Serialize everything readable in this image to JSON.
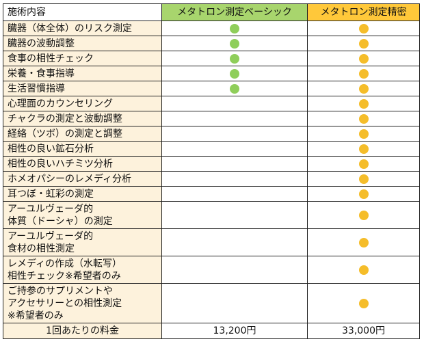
{
  "header": {
    "col1": "施術内容",
    "col2": "メタトロン測定ベーシック",
    "col3": "メタトロン測定精密"
  },
  "colors": {
    "basic_dot": "#8fce5a",
    "precise_dot": "#f5bd2a",
    "basic_header": "#a8d56d",
    "precise_header": "#ffc83a",
    "item_bg": "#fdf2dc"
  },
  "rows": [
    {
      "label": [
        "臓器（体全体）のリスク測定"
      ],
      "basic": true,
      "precise": true
    },
    {
      "label": [
        "臓器の波動調整"
      ],
      "basic": true,
      "precise": true
    },
    {
      "label": [
        "食事の相性チェック"
      ],
      "basic": true,
      "precise": true
    },
    {
      "label": [
        "栄養・食事指導"
      ],
      "basic": true,
      "precise": true
    },
    {
      "label": [
        "生活習慣指導"
      ],
      "basic": true,
      "precise": true
    },
    {
      "label": [
        "心理面のカウンセリング"
      ],
      "basic": false,
      "precise": true
    },
    {
      "label": [
        "チャクラの測定と波動調整"
      ],
      "basic": false,
      "precise": true
    },
    {
      "label": [
        "経絡（ツボ）の測定と調整"
      ],
      "basic": false,
      "precise": true
    },
    {
      "label": [
        "相性の良い鉱石分析"
      ],
      "basic": false,
      "precise": true
    },
    {
      "label": [
        "相性の良いハチミツ分析"
      ],
      "basic": false,
      "precise": true
    },
    {
      "label": [
        "ホメオパシーのレメディ分析"
      ],
      "basic": false,
      "precise": true
    },
    {
      "label": [
        "耳つぼ・虹彩の測定"
      ],
      "basic": false,
      "precise": true
    },
    {
      "label": [
        "アーユルヴェーダ的",
        "体質（ドーシャ）の測定"
      ],
      "basic": false,
      "precise": true
    },
    {
      "label": [
        "アーユルヴェーダ的",
        "食材の相性測定"
      ],
      "basic": false,
      "precise": true
    },
    {
      "label": [
        "レメディの作成（水転写）",
        "相性チェック※希望者のみ"
      ],
      "basic": false,
      "precise": true
    },
    {
      "label": [
        "ご持参のサプリメントや",
        "アクセサリーとの相性測定",
        "※希望者のみ"
      ],
      "basic": false,
      "precise": true
    }
  ],
  "footer": {
    "label": "1回あたりの料金",
    "basic_price": "13,200円",
    "precise_price": "33,000円"
  }
}
